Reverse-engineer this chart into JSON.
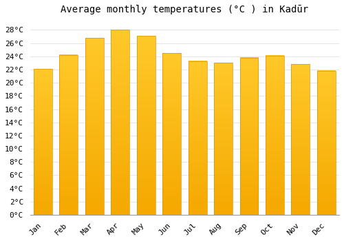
{
  "title": "Average monthly temperatures (°C ) in Kadūr",
  "months": [
    "Jan",
    "Feb",
    "Mar",
    "Apr",
    "May",
    "Jun",
    "Jul",
    "Aug",
    "Sep",
    "Oct",
    "Nov",
    "Dec"
  ],
  "values": [
    22.1,
    24.2,
    26.8,
    28.0,
    27.1,
    24.5,
    23.3,
    23.0,
    23.8,
    24.1,
    22.8,
    21.8
  ],
  "bar_color_top": "#FFC929",
  "bar_color_bottom": "#F5A800",
  "bar_edge_color": "#E09000",
  "background_color": "#FFFFFF",
  "grid_color": "#E0E0E0",
  "ytick_labels": [
    "0°C",
    "2°C",
    "4°C",
    "6°C",
    "8°C",
    "10°C",
    "12°C",
    "14°C",
    "16°C",
    "18°C",
    "20°C",
    "22°C",
    "24°C",
    "26°C",
    "28°C"
  ],
  "ytick_values": [
    0,
    2,
    4,
    6,
    8,
    10,
    12,
    14,
    16,
    18,
    20,
    22,
    24,
    26,
    28
  ],
  "ylim": [
    0,
    29.5
  ],
  "title_fontsize": 10,
  "tick_fontsize": 8,
  "bar_width": 0.72
}
